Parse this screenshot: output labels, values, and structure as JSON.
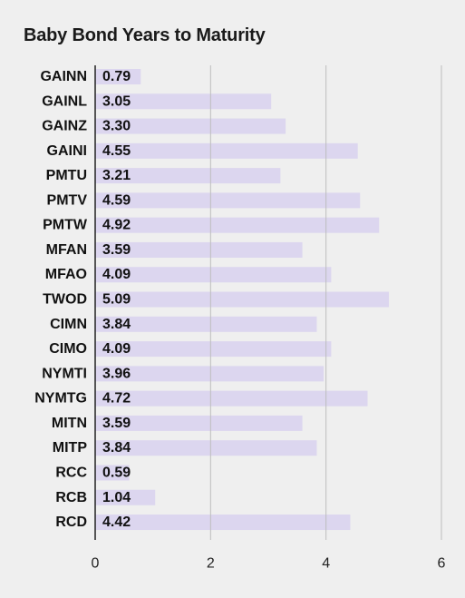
{
  "chart_data": {
    "type": "bar",
    "orientation": "horizontal",
    "title": "Baby Bond Years to Maturity",
    "xlabel": "",
    "ylabel": "",
    "xlim": [
      0,
      6
    ],
    "ticks": [
      "0",
      "2",
      "4",
      "6"
    ],
    "tick_values": [
      0,
      2,
      4,
      6
    ],
    "grid": true,
    "categories": [
      "GAINN",
      "GAINL",
      "GAINZ",
      "GAINI",
      "PMTU",
      "PMTV",
      "PMTW",
      "MFAN",
      "MFAO",
      "TWOD",
      "CIMN",
      "CIMO",
      "NYMTI",
      "NYMTG",
      "MITN",
      "MITP",
      "RCC",
      "RCB",
      "RCD"
    ],
    "values": [
      0.79,
      3.05,
      3.3,
      4.55,
      3.21,
      4.59,
      4.92,
      3.59,
      4.09,
      5.09,
      3.84,
      4.09,
      3.96,
      4.72,
      3.59,
      3.84,
      0.59,
      1.04,
      4.42
    ],
    "value_labels": [
      "0.79",
      "3.05",
      "3.30",
      "4.55",
      "3.21",
      "4.59",
      "4.92",
      "3.59",
      "4.09",
      "5.09",
      "3.84",
      "4.09",
      "3.96",
      "4.72",
      "3.59",
      "3.84",
      "0.59",
      "1.04",
      "4.42"
    ],
    "colors": {
      "bar": "#dcd6ef",
      "grid": "#bdbdbd",
      "axis": "#222222"
    }
  }
}
